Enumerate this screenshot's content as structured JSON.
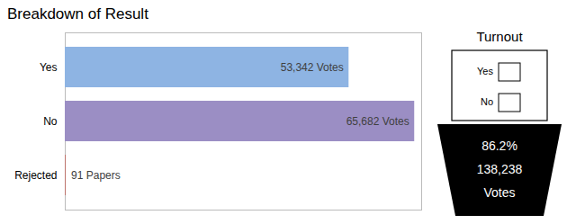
{
  "chart_data": {
    "type": "bar",
    "orientation": "horizontal",
    "title": "Breakdown of Result",
    "categories": [
      "Yes",
      "No",
      "Rejected"
    ],
    "values": [
      53342,
      65682,
      91
    ],
    "value_labels": [
      "53,342 Votes",
      "65,682 Votes",
      "91 Papers"
    ],
    "data_labels": true,
    "colors": [
      "#8EB4E3",
      "#9B8EC4",
      "#c0392b"
    ],
    "xlim": [
      0,
      66995.64
    ],
    "tick_labels": "y",
    "grid": false,
    "annotations": [
      "Turnout",
      "Yes",
      "No",
      "86.2%",
      "138,238",
      "Votes"
    ]
  }
}
